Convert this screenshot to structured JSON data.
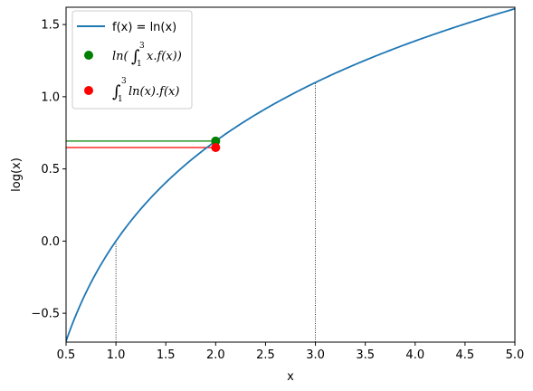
{
  "chart_data": {
    "type": "line",
    "xlabel": "x",
    "ylabel": "log(x)",
    "xlim": [
      0.5,
      5.0
    ],
    "ylim": [
      -0.7,
      1.62
    ],
    "x_ticks": [
      "0.5",
      "1.0",
      "1.5",
      "2.0",
      "2.5",
      "3.0",
      "3.5",
      "4.0",
      "4.5",
      "5.0"
    ],
    "y_ticks": [
      "−0.5",
      "0.0",
      "0.5",
      "1.0",
      "1.5"
    ],
    "grid": false,
    "legend_placement": "top-left",
    "series": [
      {
        "name": "f(x) = ln(x)",
        "kind": "line",
        "color": "#1f77b4",
        "function": "ln(x)",
        "x_range": [
          0.5,
          5.0
        ]
      },
      {
        "name": "ln(∫₁³x.f(x))",
        "kind": "scatter",
        "color": "#008000",
        "points": [
          {
            "x": 2.0,
            "y": 0.693
          }
        ]
      },
      {
        "name": "∫₁³ln(x).f(x)",
        "kind": "scatter",
        "color": "#ff0000",
        "points": [
          {
            "x": 2.0,
            "y": 0.648
          }
        ]
      }
    ],
    "reference_lines": [
      {
        "orientation": "horizontal",
        "y": 0.693,
        "x_from": 0.5,
        "x_to": 2.0,
        "color": "#008000",
        "style": "solid"
      },
      {
        "orientation": "horizontal",
        "y": 0.648,
        "x_from": 0.5,
        "x_to": 2.0,
        "color": "#ff0000",
        "style": "solid"
      },
      {
        "orientation": "vertical",
        "x": 1.0,
        "y_from": -0.7,
        "y_to": 0.0,
        "color": "#000000",
        "style": "dotted"
      },
      {
        "orientation": "vertical",
        "x": 3.0,
        "y_from": -0.7,
        "y_to": 1.0986,
        "color": "#000000",
        "style": "dotted"
      }
    ],
    "legend_entries": {
      "entry1": "f(x) = ln(x)",
      "entry2_prefix": "ln(",
      "entry2_body": "x.f(x))",
      "entry3_body": "ln(x).f(x)",
      "integral_upper": "3",
      "integral_lower": "1"
    }
  }
}
